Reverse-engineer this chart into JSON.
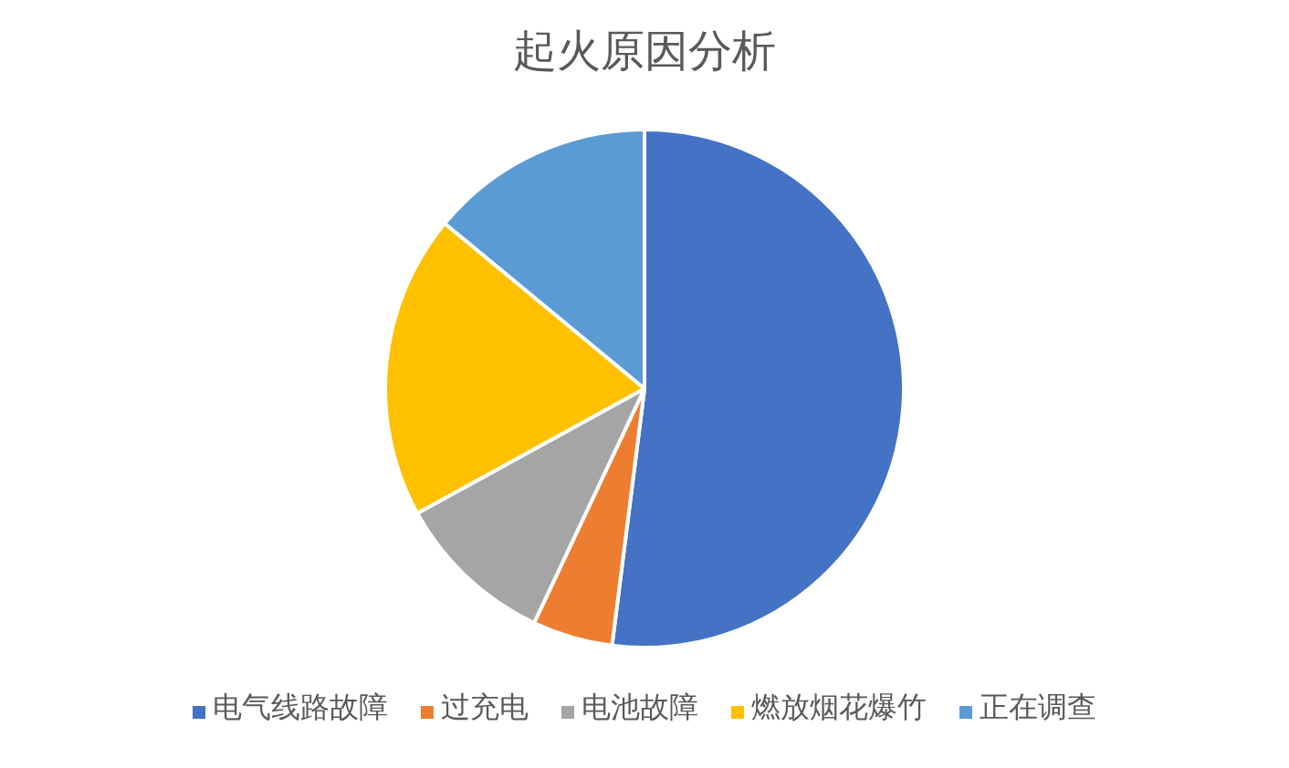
{
  "chart_data": {
    "type": "pie",
    "title": "起火原因分析",
    "categories": [
      "电气线路故障",
      "过充电",
      "电池故障",
      "燃放烟花爆竹",
      "正在调查"
    ],
    "values": [
      52,
      5,
      10,
      19,
      14
    ],
    "colors": [
      "#4472c4",
      "#ed7d31",
      "#a5a5a5",
      "#ffc000",
      "#5b9bd5"
    ],
    "legend": "bottom"
  }
}
